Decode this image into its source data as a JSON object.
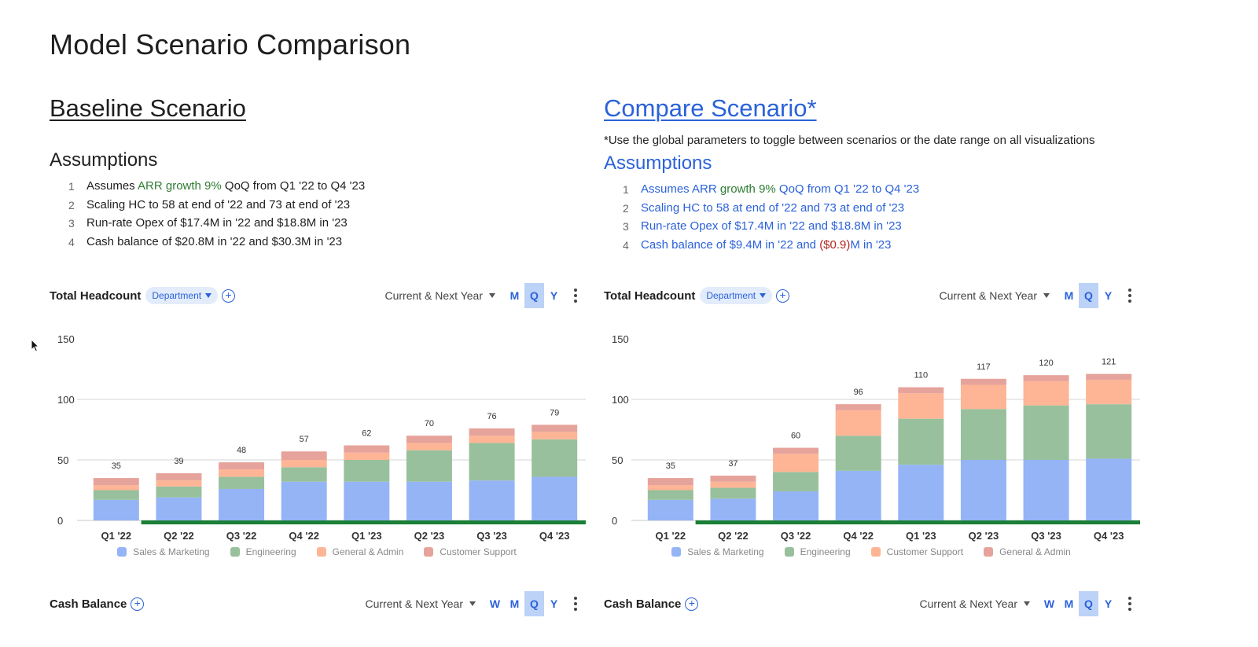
{
  "page": {
    "title": "Model Scenario Comparison"
  },
  "baseline": {
    "title": "Baseline Scenario",
    "assumptions_title": "Assumptions",
    "assumptions": [
      {
        "num": "1",
        "pre": "Assumes ",
        "hl": "ARR growth 9%",
        "post": " QoQ  from Q1 '22 to Q4 '23"
      },
      {
        "num": "2",
        "pre": "Scaling HC to 58 at end of '22 and 73 at end of '23",
        "hl": "",
        "post": ""
      },
      {
        "num": "3",
        "pre": "Run-rate Opex of $17.4M in '22 and $18.8M in '23",
        "hl": "",
        "post": ""
      },
      {
        "num": "4",
        "pre": "Cash balance of $20.8M in '22 and $30.3M in '23",
        "hl": "",
        "post": ""
      }
    ]
  },
  "compare": {
    "title": "Compare Scenario*",
    "note": "*Use the global parameters to toggle between scenarios or the date range on all visualizations",
    "assumptions_title": "Assumptions",
    "assumptions": [
      {
        "num": "1",
        "pre": "Assumes ARR ",
        "hl": "growth 9%",
        "post": " QoQ  from Q1 '22 to Q4 '23"
      },
      {
        "num": "2",
        "pre": "Scaling HC to 58 at end of '22 and 73 at end of '23",
        "hl": "",
        "post": ""
      },
      {
        "num": "3",
        "pre": "Run-rate Opex of $17.4M in '22 and $18.8M in '23",
        "hl": "",
        "post": ""
      },
      {
        "num": "4",
        "pre": "Cash balance of $9.4M in '22 and ",
        "red": "($0.9)",
        "post": "M in '23"
      }
    ]
  },
  "widgets": {
    "headcount_left": {
      "title": "Total Headcount",
      "group_by": "Department",
      "range": "Current & Next Year",
      "periods": [
        "M",
        "Q",
        "Y"
      ],
      "active_period": "Q"
    },
    "headcount_right": {
      "title": "Total Headcount",
      "group_by": "Department",
      "range": "Current & Next Year",
      "periods": [
        "M",
        "Q",
        "Y"
      ],
      "active_period": "Q"
    },
    "cash_left": {
      "title": "Cash Balance",
      "range": "Current & Next Year",
      "periods": [
        "W",
        "M",
        "Q",
        "Y"
      ],
      "active_period": "Q"
    },
    "cash_right": {
      "title": "Cash Balance",
      "range": "Current & Next Year",
      "periods": [
        "W",
        "M",
        "Q",
        "Y"
      ],
      "active_period": "Q"
    }
  },
  "colors": {
    "sales_marketing": "#94b4f6",
    "engineering": "#98c09c",
    "orange": "#fdb596",
    "red": "#e6a39b",
    "accent_blue": "#2b62d9",
    "timeline_green": "#1a7f37"
  },
  "chart_data": [
    {
      "type": "bar",
      "stacked": true,
      "title": "Total Headcount (Baseline Scenario)",
      "categories": [
        "Q1 '22",
        "Q2 '22",
        "Q3 '22",
        "Q4 '22",
        "Q1 '23",
        "Q2 '23",
        "Q3 '23",
        "Q4 '23"
      ],
      "series": [
        {
          "name": "Sales & Marketing",
          "color": "#94b4f6",
          "values": [
            17,
            19,
            26,
            32,
            32,
            32,
            33,
            36
          ]
        },
        {
          "name": "Engineering",
          "color": "#98c09c",
          "values": [
            8,
            9,
            10,
            12,
            18,
            26,
            31,
            31
          ]
        },
        {
          "name": "General & Admin",
          "color": "#fdb596",
          "values": [
            4,
            5,
            6,
            6,
            6,
            6,
            6,
            6
          ]
        },
        {
          "name": "Customer Support",
          "color": "#e6a39b",
          "values": [
            6,
            6,
            6,
            7,
            6,
            6,
            6,
            6
          ]
        }
      ],
      "totals": [
        35,
        39,
        48,
        57,
        62,
        70,
        76,
        79
      ],
      "yticks": [
        0,
        50,
        100,
        150
      ],
      "ylim": [
        0,
        150
      ],
      "xlabel": "",
      "ylabel": "",
      "grid": true,
      "legend_position": "bottom"
    },
    {
      "type": "bar",
      "stacked": true,
      "title": "Total Headcount (Compare Scenario)",
      "categories": [
        "Q1 '22",
        "Q2 '22",
        "Q3 '22",
        "Q4 '22",
        "Q1 '23",
        "Q2 '23",
        "Q3 '23",
        "Q4 '23"
      ],
      "series": [
        {
          "name": "Sales & Marketing",
          "color": "#94b4f6",
          "values": [
            17,
            18,
            24,
            41,
            46,
            50,
            50,
            51
          ]
        },
        {
          "name": "Engineering",
          "color": "#98c09c",
          "values": [
            8,
            9,
            16,
            29,
            38,
            42,
            45,
            45
          ]
        },
        {
          "name": "Customer Support",
          "color": "#fdb596",
          "values": [
            4,
            5,
            15,
            21,
            21,
            20,
            20,
            20
          ]
        },
        {
          "name": "General & Admin",
          "color": "#e6a39b",
          "values": [
            6,
            5,
            5,
            5,
            5,
            5,
            5,
            5
          ]
        }
      ],
      "totals": [
        35,
        37,
        60,
        96,
        110,
        117,
        120,
        121
      ],
      "yticks": [
        0,
        50,
        100,
        150
      ],
      "ylim": [
        0,
        150
      ],
      "xlabel": "",
      "ylabel": "",
      "grid": true,
      "legend_position": "bottom"
    }
  ]
}
